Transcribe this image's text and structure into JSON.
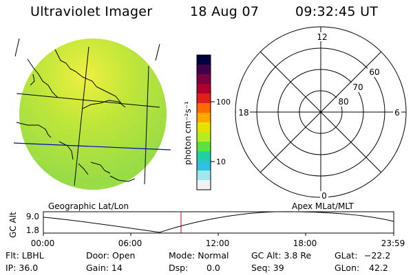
{
  "header": {
    "title": "Ultraviolet Imager",
    "date": "18 Aug 07",
    "time": "09:32:45 UT"
  },
  "colorbar": {
    "unit_label": "photon cm⁻²s⁻¹",
    "tick_100": "100",
    "tick_10": "10",
    "colors": [
      "#000040",
      "#40004a",
      "#7a0040",
      "#b00030",
      "#e0201a",
      "#ff6a00",
      "#ffa800",
      "#e8e000",
      "#b8ec20",
      "#60e040",
      "#20d0a0",
      "#30c0e0",
      "#a0e8f0",
      "#f2f2f2"
    ]
  },
  "polar": {
    "labels": {
      "top": "12",
      "left": "18",
      "right": "6",
      "bottom": "0"
    },
    "rings": [
      "60",
      "70",
      "80"
    ]
  },
  "globe": {
    "fill": "#b4e63c",
    "glow": "#e8f040",
    "grid_color": "#0000cc"
  },
  "timeline": {
    "left_title": "Geographic Lat/Lon",
    "right_title": "Apex MLat/MLT",
    "y_label": "GC Alt",
    "y_max": "9.0",
    "y_min": "1.8",
    "x_ticks": [
      "00:00",
      "06:00",
      "12:00",
      "18:00",
      "23:59"
    ],
    "marker_color": "#cc0000"
  },
  "info": {
    "flt": "Flt: LBHL",
    "door": "Door: Open",
    "mode": "Mode: Normal",
    "gc_alt": "GC Alt: 3.8 Re",
    "glat_label": "GLat:",
    "glat_value": "−22.2",
    "ip": "IP: 36.0",
    "gain": "Gain: 14",
    "dsp_label": "Dsp:",
    "dsp_value": "0.0",
    "seq": "Seq: 39",
    "glon_label": "GLon:",
    "glon_value": "42.2"
  }
}
